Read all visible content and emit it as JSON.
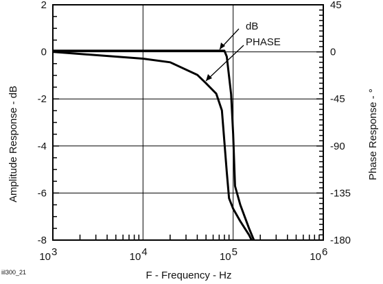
{
  "chart_data": {
    "type": "line",
    "x_scale": "log",
    "xlim": [
      1000,
      1000000
    ],
    "ylim_left": [
      -8,
      2
    ],
    "ylim_right": [
      -180,
      45
    ],
    "xlabel": "F - Frequency - Hz",
    "ylabel_left": "Amplitude Response - dB",
    "ylabel_right": "Phase Response - °",
    "grid": true,
    "x_ticks": [
      {
        "value": 1000,
        "base": "10",
        "exp": "3"
      },
      {
        "value": 10000,
        "base": "10",
        "exp": "4"
      },
      {
        "value": 100000,
        "base": "10",
        "exp": "5"
      },
      {
        "value": 1000000,
        "base": "10",
        "exp": "6"
      }
    ],
    "y_ticks_left": [
      "2",
      "0",
      "-2",
      "-4",
      "-6",
      "-8"
    ],
    "y_ticks_right": [
      "45",
      "0",
      "-45",
      "-90",
      "-135",
      "-180"
    ],
    "series": [
      {
        "name": "dB",
        "axis": "left",
        "points": [
          [
            1000,
            0.05
          ],
          [
            80000,
            0.05
          ],
          [
            85000,
            -0.2
          ],
          [
            95000,
            -1.8
          ],
          [
            100000,
            -3.5
          ],
          [
            105000,
            -5.7
          ],
          [
            120000,
            -6.5
          ],
          [
            150000,
            -7.5
          ],
          [
            170000,
            -8.0
          ]
        ]
      },
      {
        "name": "PHASE",
        "axis": "right",
        "points": [
          [
            1000,
            0
          ],
          [
            10000,
            -6.5
          ],
          [
            20000,
            -10
          ],
          [
            40000,
            -22
          ],
          [
            50000,
            -30
          ],
          [
            65000,
            -40
          ],
          [
            75000,
            -56
          ],
          [
            85000,
            -115
          ],
          [
            90000,
            -140
          ],
          [
            100000,
            -150
          ],
          [
            120000,
            -162
          ],
          [
            150000,
            -175
          ],
          [
            160000,
            -180
          ]
        ]
      }
    ],
    "annotations": [
      "dB",
      "PHASE"
    ],
    "footnote": "iil300_21"
  }
}
